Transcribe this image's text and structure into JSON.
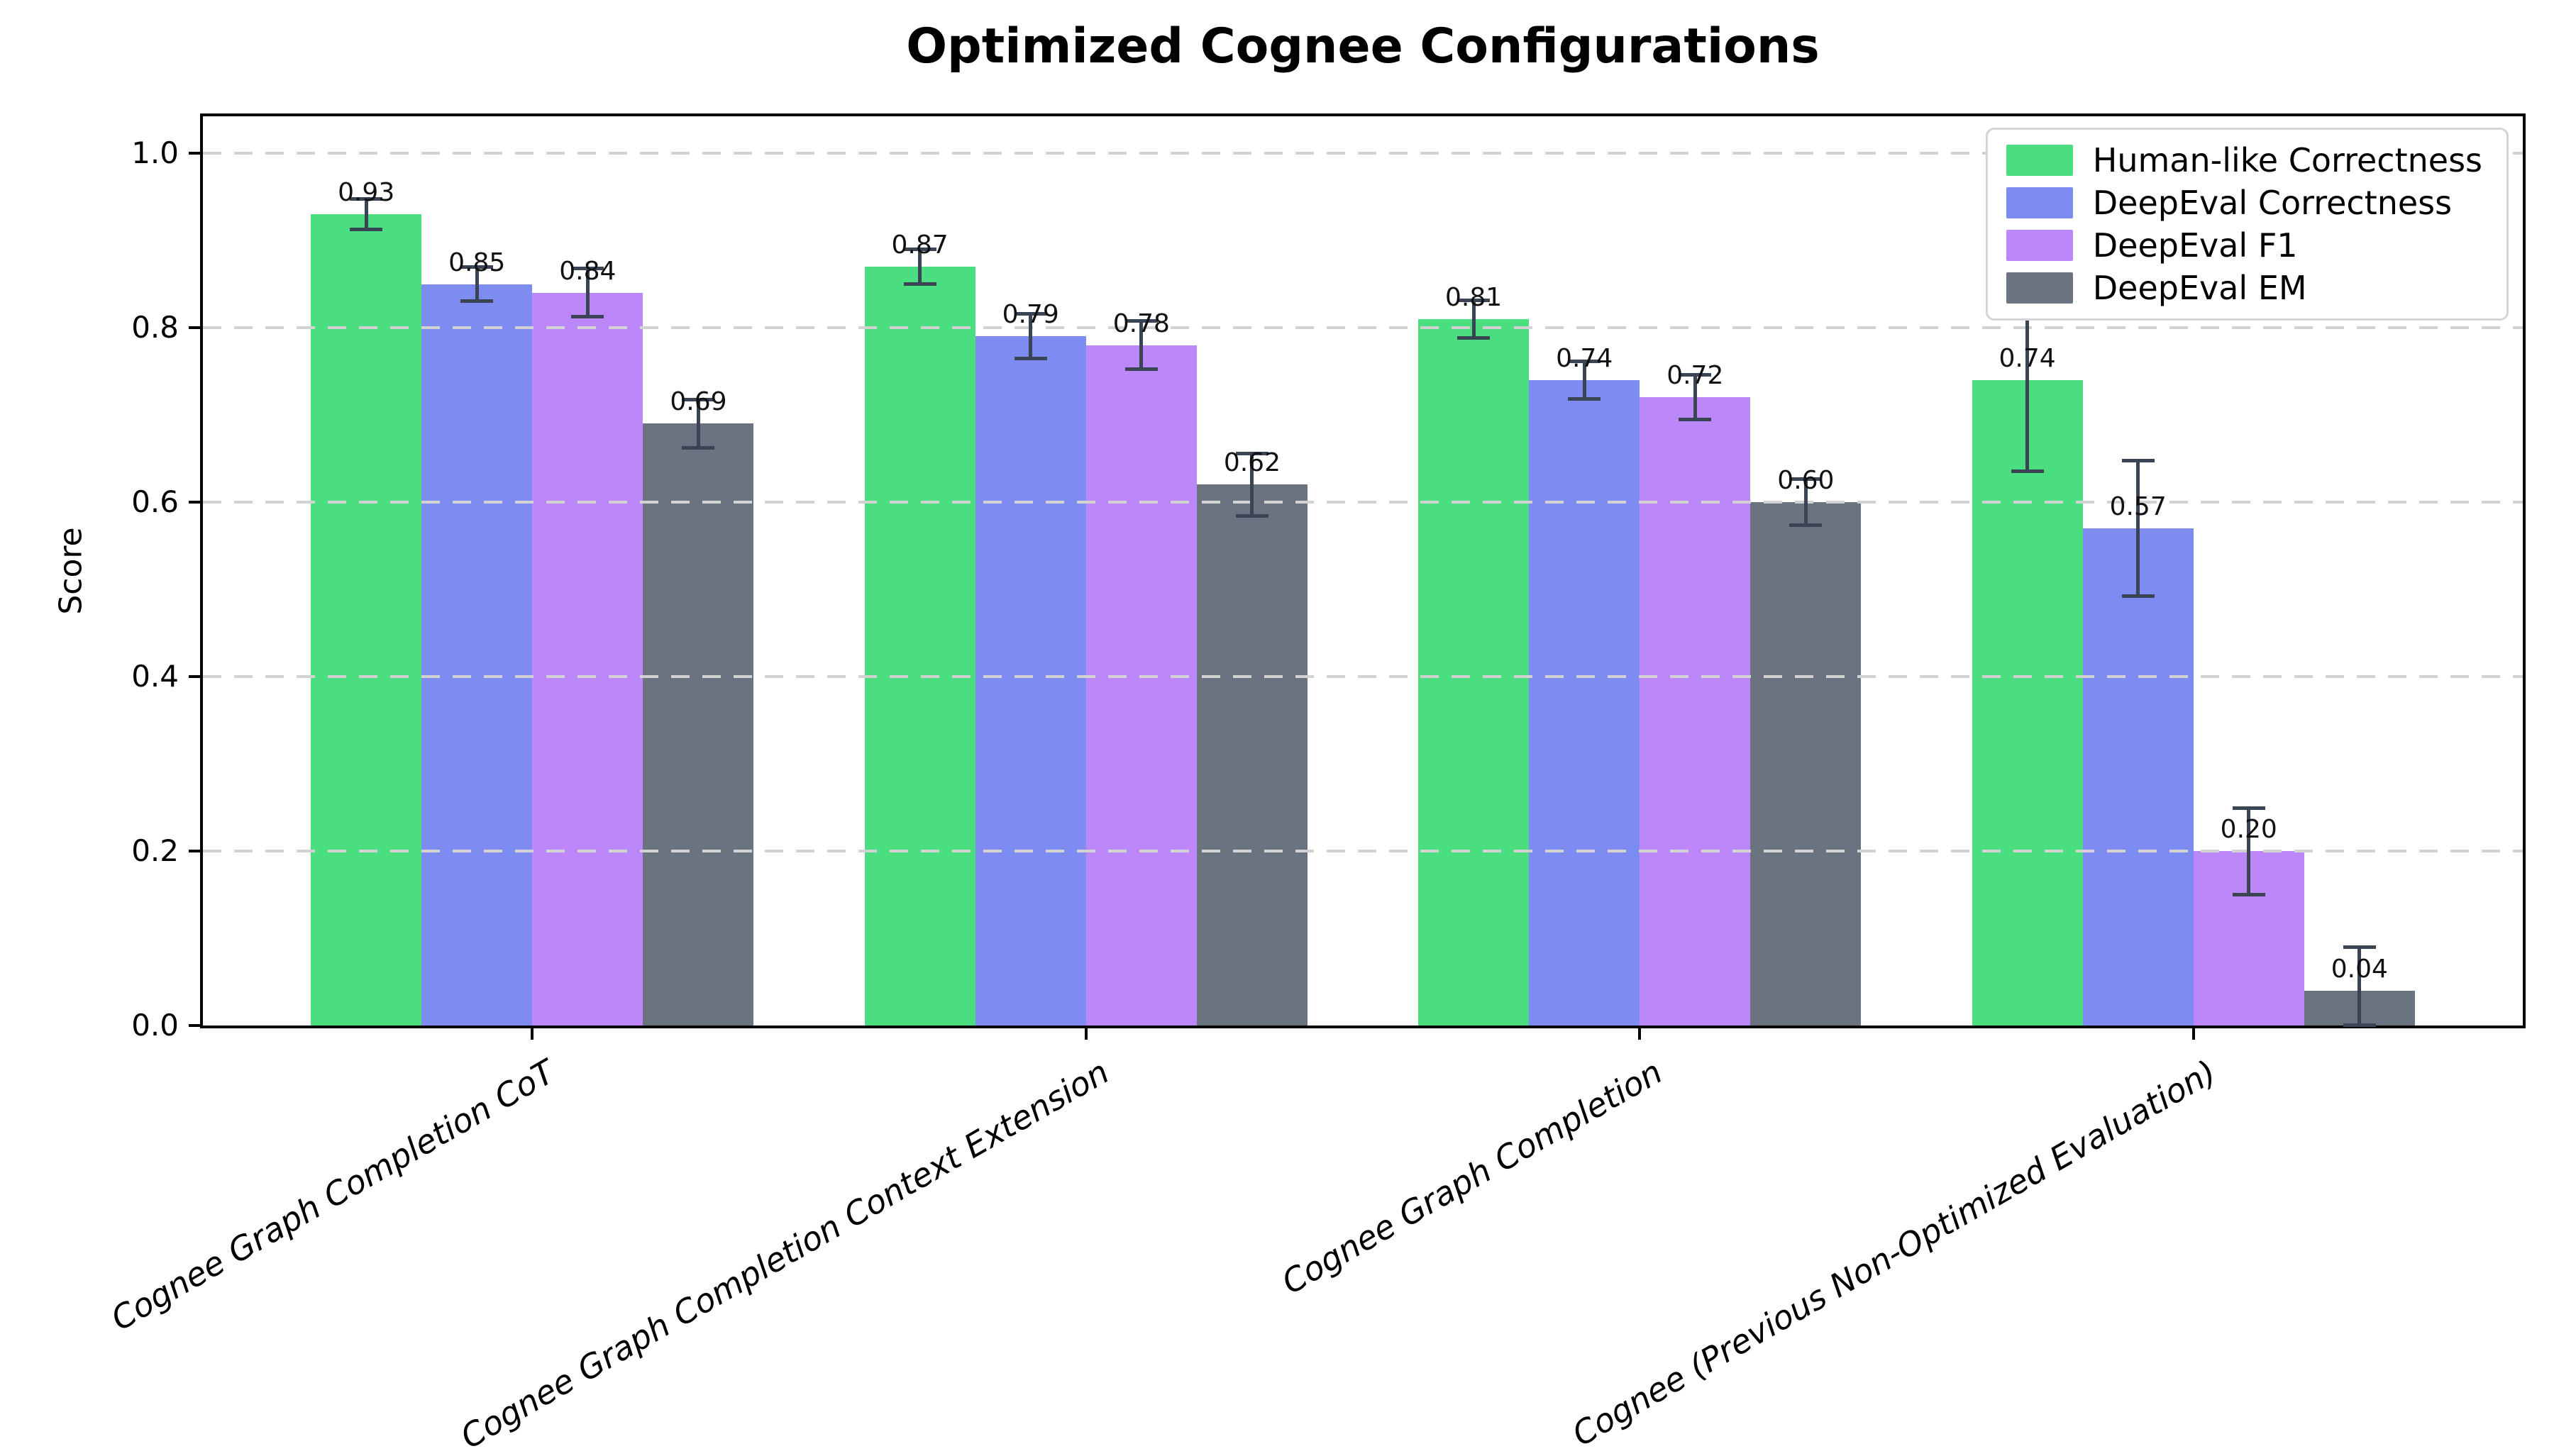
{
  "title": "Optimized Cognee Configurations",
  "chart_data": {
    "type": "bar",
    "title": "Optimized Cognee Configurations",
    "xlabel": "",
    "ylabel": "Score",
    "categories": [
      "Cognee Graph Completion CoT",
      "Cognee Graph Completion Context Extension",
      "Cognee Graph Completion",
      "Cognee (Previous Non-Optimized Evaluation)"
    ],
    "series": [
      {
        "name": "Human-like Correctness",
        "color": "#4ade80",
        "values": [
          0.93,
          0.87,
          0.81,
          0.74
        ],
        "errors": [
          0.018,
          0.02,
          0.022,
          0.105
        ]
      },
      {
        "name": "DeepEval Correctness",
        "color": "#7e8bf0",
        "values": [
          0.85,
          0.79,
          0.74,
          0.57
        ],
        "errors": [
          0.02,
          0.026,
          0.022,
          0.078
        ]
      },
      {
        "name": "DeepEval F1",
        "color": "#bc87f8",
        "values": [
          0.84,
          0.78,
          0.72,
          0.2
        ],
        "errors": [
          0.028,
          0.028,
          0.026,
          0.05
        ]
      },
      {
        "name": "DeepEval EM",
        "color": "#6b7280",
        "values": [
          0.69,
          0.62,
          0.6,
          0.04
        ],
        "errors": [
          0.028,
          0.036,
          0.027,
          0.05
        ]
      }
    ],
    "yticks": [
      0.0,
      0.2,
      0.4,
      0.6,
      0.8,
      1.0
    ],
    "ylim": [
      0,
      1.05
    ],
    "value_label_decimals": 2,
    "grid": {
      "axis": "y",
      "style": "dashed",
      "color": "#d2d2d2"
    },
    "legend_position": "upper right",
    "colors": {
      "error_bar": "#3b4454",
      "spine": "#000000",
      "text": "#000000",
      "value_label": "#111111"
    }
  }
}
